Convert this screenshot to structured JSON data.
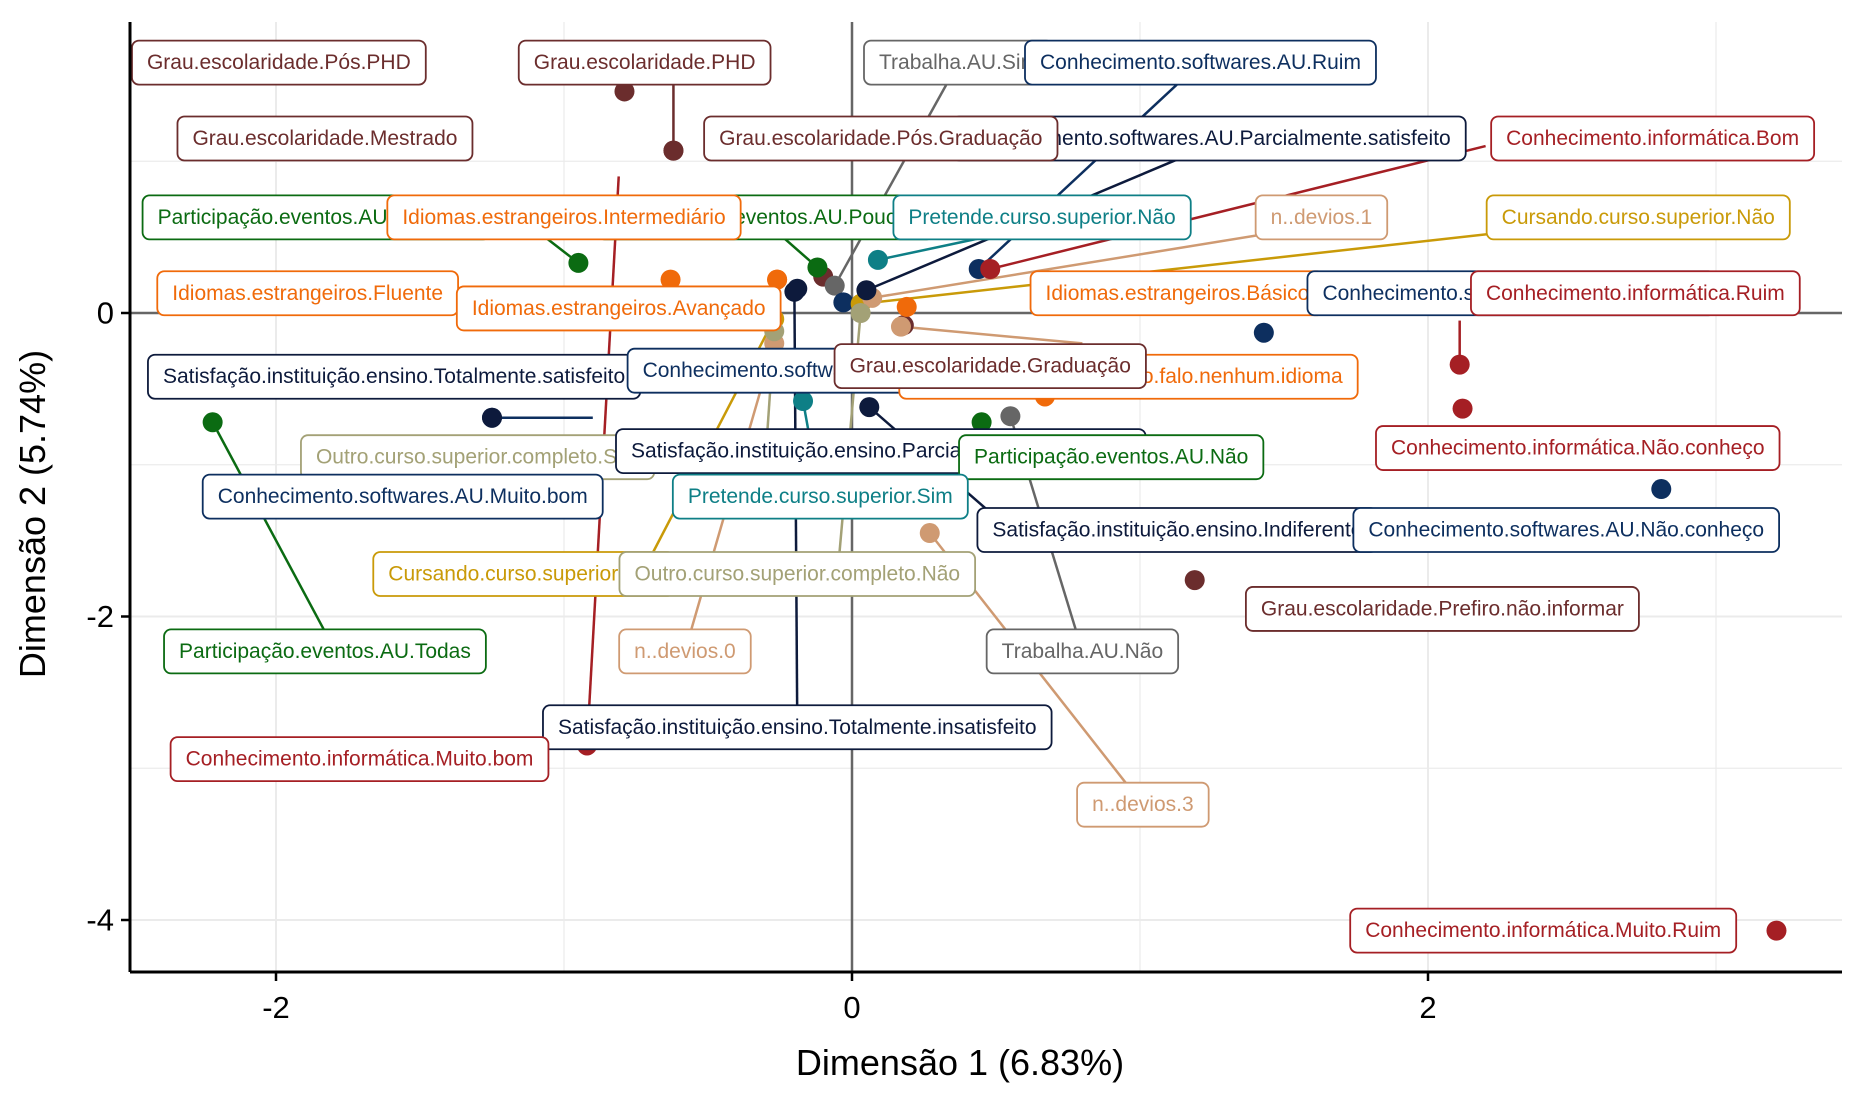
{
  "chart_data": {
    "type": "scatter",
    "xlabel": "Dimensão 1 (6.83%)",
    "ylabel": "Dimensão 2 (5.74%)",
    "xlim": [
      -2.5,
      3.45
    ],
    "ylim": [
      -4.35,
      1.9
    ],
    "xticks": [
      -2,
      0,
      2
    ],
    "yticks": [
      -4,
      -2,
      0
    ],
    "grid": true,
    "reference_lines": [
      0,
      0
    ],
    "colors": {
      "grau": "#6b2d2d",
      "trabalha": "#666666",
      "softwares": "#0d2f5f",
      "informatica": "#a51f24",
      "participacao": "#0b6b12",
      "idiomas": "#f06a0a",
      "pretende": "#0e7f86",
      "cursando": "#c99a08",
      "devios": "#cf9a72",
      "satisfacao": "#0d1a3c",
      "outro": "#a3a176"
    },
    "points": [
      {
        "label": "Grau.escolaridade.Pós.PHD",
        "group": "grau",
        "x": -0.79,
        "y": 1.46
      },
      {
        "label": "Grau.escolaridade.PHD",
        "group": "grau",
        "x": -0.62,
        "y": 1.07
      },
      {
        "label": "Grau.escolaridade.Mestrado",
        "group": "grau",
        "x": -0.62,
        "y": 1.07
      },
      {
        "label": "Grau.escolaridade.Pós.Graduação",
        "group": "grau",
        "x": -0.1,
        "y": 0.24
      },
      {
        "label": "Grau.escolaridade.Graduação",
        "group": "grau",
        "x": 0.18,
        "y": -0.08
      },
      {
        "label": "Grau.escolaridade.Prefiro.não.informar",
        "group": "grau",
        "x": 1.19,
        "y": -1.76
      },
      {
        "label": "Trabalha.AU.Sim",
        "group": "trabalha",
        "x": -0.06,
        "y": 0.18
      },
      {
        "label": "Trabalha.AU.Não",
        "group": "trabalha",
        "x": 0.55,
        "y": -0.68
      },
      {
        "label": "Conhecimento.softwares.AU.Ruim",
        "group": "softwares",
        "x": 0.44,
        "y": 0.29
      },
      {
        "label": "Conhecimento.softwares.AU.Muito.Ruim",
        "group": "softwares",
        "x": 1.43,
        "y": -0.13
      },
      {
        "label": "Conhecimento.softwares.AU.Bom",
        "group": "softwares",
        "x": -0.03,
        "y": 0.07
      },
      {
        "label": "Conhecimento.softwares.AU.Muito.bom",
        "group": "softwares",
        "x": -1.25,
        "y": -0.69
      },
      {
        "label": "Conhecimento.softwares.AU.Não.conheço",
        "group": "softwares",
        "x": 2.81,
        "y": -1.16
      },
      {
        "label": "Conhecimento.informática.Bom",
        "group": "informatica",
        "x": 0.48,
        "y": 0.29
      },
      {
        "label": "Conhecimento.informática.Ruim",
        "group": "informatica",
        "x": 2.11,
        "y": -0.34
      },
      {
        "label": "Conhecimento.informática.Não.conheço",
        "group": "informatica",
        "x": 2.12,
        "y": -0.63
      },
      {
        "label": "Conhecimento.informática.Muito.bom",
        "group": "informatica",
        "x": -0.92,
        "y": -2.85
      },
      {
        "label": "Conhecimento.informática.Muito.Ruim",
        "group": "informatica",
        "x": 3.21,
        "y": -4.07
      },
      {
        "label": "Participação.eventos.AU.Todas",
        "group": "participacao",
        "x": -2.22,
        "y": -0.72
      },
      {
        "label": "Participação.eventos.AU.Algumas",
        "group": "participacao",
        "x": -0.95,
        "y": 0.33
      },
      {
        "label": "Participação.eventos.AU.Poucas",
        "group": "participacao",
        "x": -0.12,
        "y": 0.3
      },
      {
        "label": "Participação.eventos.AU.Não",
        "group": "participacao",
        "x": 0.45,
        "y": -0.72
      },
      {
        "label": "Idiomas.estrangeiros.Intermediário",
        "group": "idiomas",
        "x": -0.63,
        "y": 0.22
      },
      {
        "label": "Idiomas.estrangeiros.Fluente",
        "group": "idiomas",
        "x": -0.26,
        "y": 0.22
      },
      {
        "label": "Idiomas.estrangeiros.Avançado",
        "group": "idiomas",
        "x": -0.26,
        "y": 0.22
      },
      {
        "label": "Idiomas.estrangeiros.Básico",
        "group": "idiomas",
        "x": 0.19,
        "y": 0.04
      },
      {
        "label": "Idiomas.estrangeiros.Não.falo.nenhum.idioma",
        "group": "idiomas",
        "x": 0.67,
        "y": -0.55
      },
      {
        "label": "Pretende.curso.superior.Não",
        "group": "pretende",
        "x": 0.09,
        "y": 0.35
      },
      {
        "label": "Pretende.curso.superior.Sim",
        "group": "pretende",
        "x": -0.17,
        "y": -0.58
      },
      {
        "label": "Cursando.curso.superior.Não",
        "group": "cursando",
        "x": 0.03,
        "y": 0.06
      },
      {
        "label": "Cursando.curso.superior.Sim",
        "group": "cursando",
        "x": -0.27,
        "y": -0.04
      },
      {
        "label": "n..devios.1",
        "group": "devios",
        "x": 0.07,
        "y": 0.1
      },
      {
        "label": "n..devios.2",
        "group": "devios",
        "x": 0.17,
        "y": -0.09
      },
      {
        "label": "n..devios.0",
        "group": "devios",
        "x": -0.27,
        "y": -0.2
      },
      {
        "label": "n..devios.3",
        "group": "devios",
        "x": 0.27,
        "y": -1.45
      },
      {
        "label": "Satisfação.instituição.ensino.Totalmente.satisfeito",
        "group": "satisfacao",
        "x": -1.25,
        "y": -0.69
      },
      {
        "label": "Satisfação.instituição.ensino.Parcialmente.satisfeito",
        "group": "satisfacao",
        "x": 0.05,
        "y": 0.15
      },
      {
        "label": "Satisfação.instituição.ensino.Parcialmente.Insatisfeito",
        "group": "satisfacao",
        "x": -0.19,
        "y": 0.16
      },
      {
        "label": "Satisfação.instituição.ensino.Indiferente",
        "group": "satisfacao",
        "x": 0.06,
        "y": -0.62
      },
      {
        "label": "Satisfação.instituição.ensino.Totalmente.insatisfeito",
        "group": "satisfacao",
        "x": -0.2,
        "y": 0.14
      },
      {
        "label": "Outro.curso.superior.completo.Sim",
        "group": "outro",
        "x": -0.27,
        "y": -0.12
      },
      {
        "label": "Outro.curso.superior.completo.Não",
        "group": "outro",
        "x": 0.03,
        "y": 0.0
      }
    ],
    "labels": [
      {
        "text": "Grau.escolaridade.Pós.PHD",
        "group": "grau",
        "lx": -1.99,
        "ly": 1.65
      },
      {
        "text": "Grau.escolaridade.PHD",
        "group": "grau",
        "lx": -0.72,
        "ly": 1.65
      },
      {
        "text": "Trabalha.AU.Sim",
        "group": "trabalha",
        "lx": 0.37,
        "ly": 1.65
      },
      {
        "text": "Conhecimento.softwares.AU.Ruim",
        "group": "softwares",
        "lx": 1.21,
        "ly": 1.65
      },
      {
        "text": "Grau.escolaridade.Mestrado",
        "group": "grau",
        "lx": -1.83,
        "ly": 1.15
      },
      {
        "text": "Conhecimento.softwares.AU.Parcialmente.satisfeito",
        "group": "satisfacao",
        "lx": 1.24,
        "ly": 1.15
      },
      {
        "text": "Grau.escolaridade.Pós.Graduação",
        "group": "grau",
        "lx": 0.1,
        "ly": 1.15
      },
      {
        "text": "Conhecimento.informática.Bom",
        "group": "informatica",
        "lx": 2.78,
        "ly": 1.15
      },
      {
        "text": "Participação.eventos.AU.Algumas",
        "group": "participacao",
        "lx": -1.86,
        "ly": 0.63
      },
      {
        "text": "Participação.eventos.AU.Poucas",
        "group": "participacao",
        "lx": -0.3,
        "ly": 0.63
      },
      {
        "text": "Idiomas.estrangeiros.Intermediário",
        "group": "idiomas",
        "lx": -1.0,
        "ly": 0.63
      },
      {
        "text": "Pretende.curso.superior.Não",
        "group": "pretende",
        "lx": 0.66,
        "ly": 0.63
      },
      {
        "text": "n..devios.1",
        "group": "devios",
        "lx": 1.63,
        "ly": 0.63
      },
      {
        "text": "Cursando.curso.superior.Não",
        "group": "cursando",
        "lx": 2.73,
        "ly": 0.63
      },
      {
        "text": "Idiomas.estrangeiros.Fluente",
        "group": "idiomas",
        "lx": -1.89,
        "ly": 0.13
      },
      {
        "text": "Idiomas.estrangeiros.Avançado",
        "group": "idiomas",
        "lx": -0.81,
        "ly": 0.03
      },
      {
        "text": "Idiomas.estrangeiros.Básico",
        "group": "idiomas",
        "lx": 1.13,
        "ly": 0.13
      },
      {
        "text": "Conhecimento.softwares.AU.Muito.Ruim",
        "group": "softwares",
        "lx": 2.29,
        "ly": 0.13
      },
      {
        "text": "Conhecimento.informática.Ruim",
        "group": "informatica",
        "lx": 2.72,
        "ly": 0.13
      },
      {
        "text": "Satisfação.instituição.ensino.Totalmente.satisfeito",
        "group": "satisfacao",
        "lx": -1.59,
        "ly": -0.42
      },
      {
        "text": "Conhecimento.softwares.AU.Bom",
        "group": "softwares",
        "lx": -0.18,
        "ly": -0.38
      },
      {
        "text": "Idiomas.estrangeiros.Não.falo.nenhum.idioma",
        "group": "idiomas",
        "lx": 0.96,
        "ly": -0.42
      },
      {
        "text": "Grau.escolaridade.Graduação",
        "group": "grau",
        "lx": 0.48,
        "ly": -0.35
      },
      {
        "text": "Outro.curso.superior.completo.Sim",
        "group": "outro",
        "lx": -1.3,
        "ly": -0.95
      },
      {
        "text": "Satisfação.instituição.ensino.Parcialmente.Insatisfeito",
        "group": "satisfacao",
        "lx": 0.1,
        "ly": -0.91
      },
      {
        "text": "Participação.eventos.AU.Não",
        "group": "participacao",
        "lx": 0.9,
        "ly": -0.95
      },
      {
        "text": "Conhecimento.informática.Não.conheço",
        "group": "informatica",
        "lx": 2.52,
        "ly": -0.89
      },
      {
        "text": "Conhecimento.softwares.AU.Muito.bom",
        "group": "softwares",
        "lx": -1.56,
        "ly": -1.21
      },
      {
        "text": "Pretende.curso.superior.Sim",
        "group": "pretende",
        "lx": -0.11,
        "ly": -1.21
      },
      {
        "text": "Satisfação.instituição.ensino.Indiferente",
        "group": "satisfacao",
        "lx": 1.13,
        "ly": -1.43
      },
      {
        "text": "Conhecimento.softwares.AU.Não.conheço",
        "group": "softwares",
        "lx": 2.48,
        "ly": -1.43
      },
      {
        "text": "Cursando.curso.superior.Sim",
        "group": "cursando",
        "lx": -1.14,
        "ly": -1.72
      },
      {
        "text": "Outro.curso.superior.completo.Não",
        "group": "outro",
        "lx": -0.19,
        "ly": -1.72
      },
      {
        "text": "Grau.escolaridade.Prefiro.não.informar",
        "group": "grau",
        "lx": 2.05,
        "ly": -1.95
      },
      {
        "text": "Participação.eventos.AU.Todas",
        "group": "participacao",
        "lx": -1.83,
        "ly": -2.23
      },
      {
        "text": "n..devios.0",
        "group": "devios",
        "lx": -0.58,
        "ly": -2.23
      },
      {
        "text": "Trabalha.AU.Não",
        "group": "trabalha",
        "lx": 0.8,
        "ly": -2.23
      },
      {
        "text": "Satisfação.instituição.ensino.Totalmente.insatisfeito",
        "group": "satisfacao",
        "lx": -0.19,
        "ly": -2.73
      },
      {
        "text": "Conhecimento.informática.Muito.bom",
        "group": "informatica",
        "lx": -1.71,
        "ly": -2.94
      },
      {
        "text": "n..devios.3",
        "group": "devios",
        "lx": 1.01,
        "ly": -3.24
      },
      {
        "text": "Conhecimento.informática.Muito.Ruim",
        "group": "informatica",
        "lx": 2.4,
        "ly": -4.07
      }
    ],
    "connectors": [
      {
        "group": "grau",
        "from": [
          -0.62,
          1.07
        ],
        "to": [
          -0.62,
          1.5
        ]
      },
      {
        "group": "trabalha",
        "from": [
          -0.06,
          0.18
        ],
        "to": [
          0.37,
          1.65
        ]
      },
      {
        "group": "softwares",
        "from": [
          0.44,
          0.29
        ],
        "to": [
          1.21,
          1.65
        ]
      },
      {
        "group": "satisfacao",
        "from": [
          0.05,
          0.15
        ],
        "to": [
          1.24,
          1.1
        ]
      },
      {
        "group": "informatica",
        "from": [
          0.48,
          0.29
        ],
        "to": [
          2.2,
          1.1
        ]
      },
      {
        "group": "pretende",
        "from": [
          0.09,
          0.35
        ],
        "to": [
          0.66,
          0.58
        ]
      },
      {
        "group": "devios",
        "from": [
          0.07,
          0.1
        ],
        "to": [
          1.63,
          0.58
        ]
      },
      {
        "group": "cursando",
        "from": [
          0.03,
          0.06
        ],
        "to": [
          2.73,
          0.63
        ]
      },
      {
        "group": "participacao",
        "from": [
          -0.95,
          0.33
        ],
        "to": [
          -1.1,
          0.55
        ]
      },
      {
        "group": "participacao",
        "from": [
          -0.12,
          0.3
        ],
        "to": [
          -0.3,
          0.6
        ]
      },
      {
        "group": "participacao",
        "from": [
          -2.22,
          -0.72
        ],
        "to": [
          -1.83,
          -2.1
        ]
      },
      {
        "group": "informatica",
        "from": [
          2.11,
          -0.34
        ],
        "to": [
          2.11,
          -0.05
        ]
      },
      {
        "group": "informatica",
        "from": [
          -0.92,
          -2.85
        ],
        "to": [
          -0.81,
          0.9
        ]
      },
      {
        "group": "softwares",
        "from": [
          -1.25,
          -0.69
        ],
        "to": [
          -0.9,
          -0.69
        ]
      },
      {
        "group": "cursando",
        "from": [
          -0.27,
          -0.04
        ],
        "to": [
          -0.73,
          -1.72
        ]
      },
      {
        "group": "devios",
        "from": [
          -0.27,
          -0.2
        ],
        "to": [
          -0.58,
          -2.23
        ]
      },
      {
        "group": "devios",
        "from": [
          0.17,
          -0.09
        ],
        "to": [
          0.8,
          -0.2
        ]
      },
      {
        "group": "devios",
        "from": [
          0.27,
          -1.45
        ],
        "to": [
          1.01,
          -3.24
        ]
      },
      {
        "group": "satisfacao",
        "from": [
          -0.2,
          0.14
        ],
        "to": [
          -0.19,
          -2.73
        ]
      },
      {
        "group": "trabalha",
        "from": [
          0.55,
          -0.68
        ],
        "to": [
          0.8,
          -2.23
        ]
      },
      {
        "group": "satisfacao",
        "from": [
          0.06,
          -0.62
        ],
        "to": [
          0.55,
          -1.43
        ]
      },
      {
        "group": "pretende",
        "from": [
          -0.17,
          -0.58
        ],
        "to": [
          -0.11,
          -1.21
        ]
      },
      {
        "group": "outro",
        "from": [
          0.03,
          0.0
        ],
        "to": [
          -0.05,
          -1.72
        ]
      },
      {
        "group": "outro",
        "from": [
          -0.27,
          -0.12
        ],
        "to": [
          -0.3,
          -0.95
        ]
      }
    ]
  }
}
